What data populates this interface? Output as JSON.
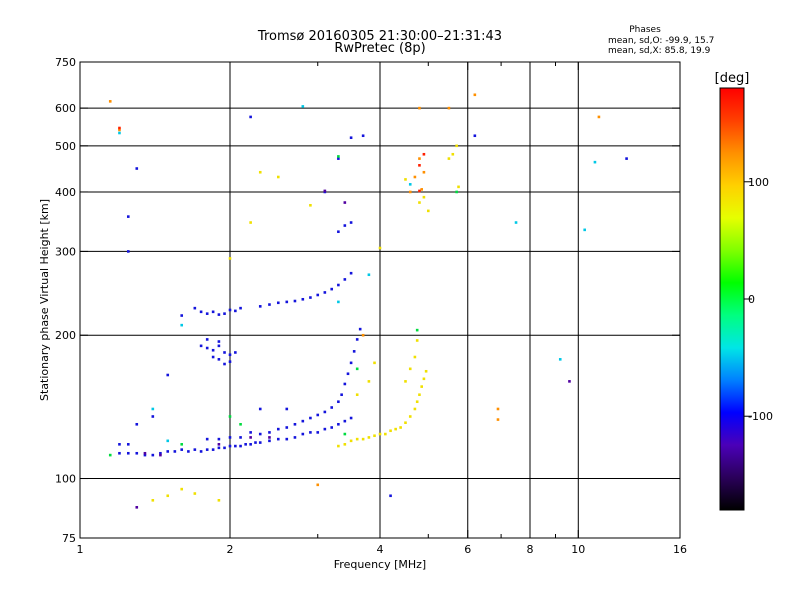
{
  "chart_data": {
    "type": "scatter",
    "title": "Tromsø 20160305 21:30:00–21:31:43",
    "subtitle": "RwPretec (8p)",
    "stats": {
      "heading": "Phases",
      "line1": "mean, sd,O: -99.9, 15.7",
      "line2": "mean, sd,X:  85.8, 19.9"
    },
    "xlabel": "Frequency [MHz]",
    "ylabel": "Stationary phase Virtual Height [km]",
    "xscale": "log",
    "yscale": "log",
    "xlim": [
      1,
      16
    ],
    "ylim": [
      75,
      750
    ],
    "x_ticks": [
      1,
      2,
      4,
      6,
      8,
      10,
      16
    ],
    "x_minor_ticks": [
      3,
      5,
      7,
      9
    ],
    "y_ticks": [
      75,
      100,
      200,
      300,
      400,
      500,
      600,
      750
    ],
    "x_grid": [
      2,
      4,
      6,
      8,
      10
    ],
    "y_grid": [
      100,
      200,
      300,
      400,
      500,
      600
    ],
    "grid": true,
    "colorbar": {
      "label": "[deg]",
      "range": [
        -180,
        180
      ],
      "ticks": [
        100,
        0,
        -100
      ],
      "colors": [
        "#000000",
        "#2a005a",
        "#4b00b8",
        "#0000ff",
        "#0080ff",
        "#00e6e6",
        "#00ff80",
        "#00ff00",
        "#80ff00",
        "#e6ff00",
        "#ffd000",
        "#ff9000",
        "#ff4000",
        "#ff0000"
      ]
    },
    "series": [
      {
        "color": "#1414dc",
        "points": [
          [
            1.2,
            113
          ],
          [
            1.25,
            113
          ],
          [
            1.3,
            113
          ],
          [
            1.35,
            112
          ],
          [
            1.4,
            112
          ],
          [
            1.45,
            113
          ],
          [
            1.5,
            114
          ],
          [
            1.55,
            114
          ],
          [
            1.6,
            115
          ],
          [
            1.65,
            114
          ],
          [
            1.7,
            115
          ],
          [
            1.75,
            114
          ],
          [
            1.8,
            115
          ],
          [
            1.85,
            115
          ],
          [
            1.9,
            116
          ],
          [
            1.95,
            116
          ],
          [
            2.0,
            117
          ],
          [
            2.05,
            117
          ],
          [
            2.1,
            117
          ],
          [
            2.15,
            118
          ],
          [
            2.2,
            118
          ],
          [
            2.25,
            119
          ],
          [
            2.3,
            119
          ],
          [
            2.4,
            120
          ],
          [
            2.5,
            121
          ],
          [
            2.6,
            121
          ],
          [
            2.7,
            122
          ],
          [
            2.8,
            124
          ],
          [
            2.9,
            125
          ],
          [
            3.0,
            125
          ],
          [
            3.1,
            127
          ],
          [
            3.2,
            128
          ],
          [
            3.3,
            130
          ],
          [
            3.4,
            132
          ],
          [
            3.5,
            134
          ],
          [
            2.3,
            124
          ],
          [
            2.4,
            125
          ],
          [
            2.5,
            127
          ],
          [
            2.6,
            128
          ],
          [
            2.7,
            130
          ],
          [
            2.8,
            132
          ],
          [
            2.9,
            134
          ],
          [
            3.0,
            136
          ],
          [
            3.1,
            138
          ],
          [
            3.2,
            141
          ],
          [
            3.3,
            145
          ],
          [
            3.35,
            150
          ],
          [
            3.4,
            158
          ],
          [
            3.45,
            166
          ],
          [
            3.5,
            175
          ],
          [
            3.55,
            185
          ],
          [
            3.6,
            196
          ],
          [
            3.65,
            206
          ],
          [
            1.8,
            121
          ],
          [
            1.9,
            121
          ],
          [
            2.0,
            122
          ],
          [
            2.1,
            122
          ],
          [
            1.75,
            224
          ],
          [
            1.8,
            222
          ],
          [
            1.85,
            224
          ],
          [
            1.9,
            221
          ],
          [
            1.95,
            222
          ],
          [
            2.0,
            226
          ],
          [
            2.05,
            225
          ],
          [
            2.1,
            228
          ],
          [
            2.3,
            230
          ],
          [
            2.4,
            232
          ],
          [
            2.5,
            234
          ],
          [
            2.6,
            235
          ],
          [
            2.7,
            236
          ],
          [
            2.8,
            238
          ],
          [
            2.9,
            240
          ],
          [
            3.0,
            243
          ],
          [
            3.1,
            246
          ],
          [
            3.2,
            250
          ],
          [
            3.3,
            255
          ],
          [
            3.4,
            262
          ],
          [
            3.5,
            270
          ],
          [
            1.6,
            220
          ],
          [
            1.7,
            228
          ],
          [
            1.75,
            190
          ],
          [
            1.8,
            188
          ],
          [
            1.85,
            186
          ],
          [
            1.9,
            190
          ],
          [
            1.95,
            184
          ],
          [
            2.0,
            182
          ],
          [
            2.05,
            184
          ],
          [
            1.85,
            180
          ],
          [
            1.9,
            178
          ],
          [
            1.95,
            174
          ],
          [
            2.0,
            176
          ],
          [
            1.8,
            196
          ],
          [
            1.9,
            194
          ],
          [
            3.3,
            330
          ],
          [
            3.4,
            340
          ],
          [
            3.5,
            345
          ],
          [
            3.3,
            470
          ],
          [
            3.5,
            520
          ],
          [
            3.7,
            525
          ],
          [
            2.2,
            575
          ],
          [
            1.3,
            448
          ],
          [
            1.25,
            355
          ],
          [
            1.25,
            300
          ],
          [
            1.3,
            130
          ],
          [
            1.4,
            135
          ],
          [
            1.5,
            165
          ],
          [
            2.3,
            140
          ],
          [
            2.2,
            125
          ],
          [
            1.2,
            118
          ],
          [
            1.25,
            118
          ],
          [
            2.6,
            140
          ],
          [
            4.2,
            92
          ],
          [
            6.2,
            525
          ],
          [
            12.5,
            470
          ],
          [
            3.1,
            400
          ]
        ]
      },
      {
        "color": "#f0e000",
        "points": [
          [
            3.5,
            120
          ],
          [
            3.6,
            121
          ],
          [
            3.7,
            121
          ],
          [
            3.8,
            122
          ],
          [
            3.9,
            123
          ],
          [
            4.0,
            124
          ],
          [
            4.1,
            124
          ],
          [
            4.2,
            126
          ],
          [
            4.3,
            127
          ],
          [
            4.4,
            128
          ],
          [
            4.5,
            131
          ],
          [
            4.6,
            135
          ],
          [
            4.7,
            140
          ],
          [
            4.75,
            145
          ],
          [
            4.8,
            150
          ],
          [
            4.85,
            156
          ],
          [
            4.9,
            162
          ],
          [
            4.95,
            168
          ],
          [
            4.5,
            160
          ],
          [
            4.6,
            170
          ],
          [
            4.7,
            180
          ],
          [
            4.75,
            195
          ],
          [
            3.4,
            118
          ],
          [
            3.3,
            117
          ],
          [
            3.6,
            150
          ],
          [
            3.8,
            160
          ],
          [
            3.9,
            175
          ],
          [
            4.8,
            380
          ],
          [
            4.9,
            390
          ],
          [
            5.5,
            470
          ],
          [
            5.6,
            480
          ],
          [
            5.7,
            500
          ],
          [
            5.75,
            410
          ],
          [
            2.5,
            430
          ],
          [
            2.3,
            440
          ],
          [
            2.2,
            345
          ],
          [
            2.9,
            375
          ],
          [
            2.0,
            290
          ],
          [
            1.4,
            90
          ],
          [
            1.5,
            92
          ],
          [
            1.6,
            95
          ],
          [
            1.7,
            93
          ],
          [
            1.9,
            90
          ],
          [
            4.5,
            425
          ],
          [
            4.0,
            305
          ],
          [
            5.0,
            365
          ]
        ]
      },
      {
        "color": "#ff9000",
        "points": [
          [
            4.8,
            600
          ],
          [
            4.8,
            470
          ],
          [
            4.7,
            430
          ],
          [
            4.9,
            440
          ],
          [
            4.6,
            400
          ],
          [
            4.85,
            405
          ],
          [
            5.5,
            600
          ],
          [
            6.2,
            640
          ],
          [
            6.9,
            140
          ],
          [
            6.9,
            133
          ],
          [
            1.15,
            620
          ],
          [
            1.2,
            540
          ],
          [
            3.0,
            97
          ],
          [
            11,
            575
          ],
          [
            3.7,
            200
          ]
        ]
      },
      {
        "color": "#ff2000",
        "points": [
          [
            1.2,
            545
          ],
          [
            4.8,
            455
          ],
          [
            4.9,
            480
          ],
          [
            4.8,
            402
          ]
        ]
      },
      {
        "color": "#00c8e6",
        "points": [
          [
            1.2,
            532
          ],
          [
            2.8,
            605
          ],
          [
            4.6,
            415
          ],
          [
            7.5,
            345
          ],
          [
            9.2,
            178
          ],
          [
            10.8,
            462
          ],
          [
            10.3,
            333
          ],
          [
            3.8,
            268
          ],
          [
            1.6,
            210
          ],
          [
            1.4,
            140
          ],
          [
            1.5,
            120
          ],
          [
            3.3,
            235
          ]
        ]
      },
      {
        "color": "#00dc40",
        "points": [
          [
            2.1,
            130
          ],
          [
            3.6,
            170
          ],
          [
            1.15,
            112
          ],
          [
            3.4,
            124
          ],
          [
            1.6,
            118
          ],
          [
            4.75,
            205
          ],
          [
            5.7,
            400
          ],
          [
            3.3,
            475
          ],
          [
            2.0,
            135
          ]
        ]
      },
      {
        "color": "#5000a0",
        "points": [
          [
            1.3,
            87
          ],
          [
            1.35,
            113
          ],
          [
            1.45,
            112
          ],
          [
            2.4,
            122
          ],
          [
            9.6,
            160
          ],
          [
            3.1,
            402
          ],
          [
            3.4,
            380
          ],
          [
            1.9,
            118
          ],
          [
            2.2,
            122
          ]
        ]
      }
    ]
  }
}
